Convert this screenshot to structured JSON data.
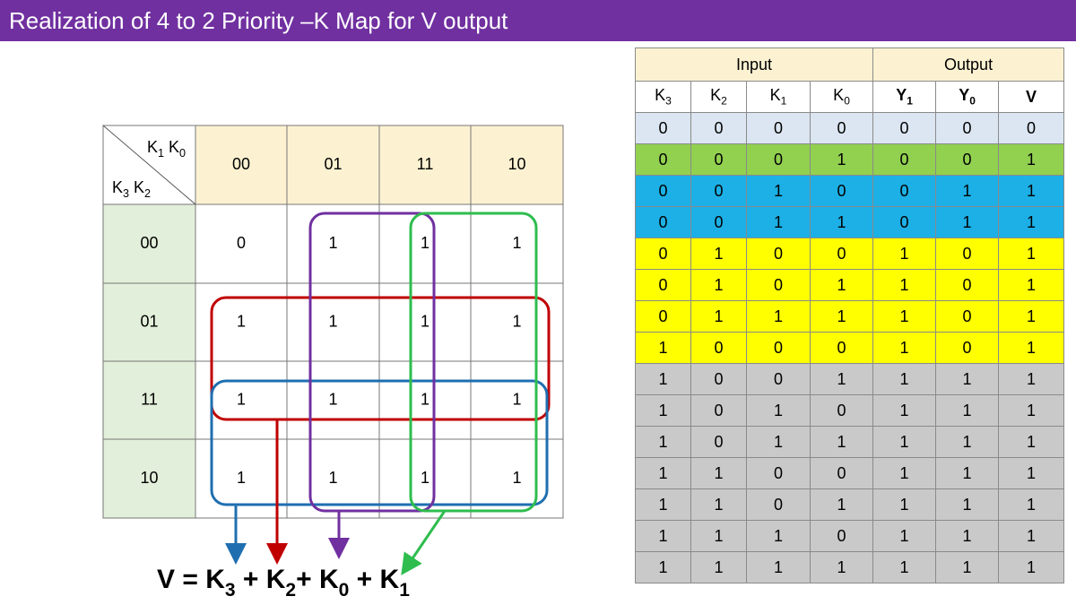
{
  "title": "Realization of 4 to 2 Priority –K Map for V output",
  "kmap": {
    "corner_top": [
      {
        "text": "K",
        "sub": "1"
      },
      {
        "text": " K",
        "sub": "0"
      }
    ],
    "corner_bottom": [
      {
        "text": "K",
        "sub": "3"
      },
      {
        "text": " K",
        "sub": "2"
      }
    ],
    "columns": [
      "00",
      "01",
      "11",
      "10"
    ],
    "rows": [
      {
        "label": "00",
        "cells": [
          0,
          1,
          1,
          1
        ]
      },
      {
        "label": "01",
        "cells": [
          1,
          1,
          1,
          1
        ]
      },
      {
        "label": "11",
        "cells": [
          1,
          1,
          1,
          1
        ]
      },
      {
        "label": "10",
        "cells": [
          1,
          1,
          1,
          1
        ]
      }
    ]
  },
  "equation": [
    {
      "text": "V = K",
      "sub": "3"
    },
    {
      "text": " + K",
      "sub": "2"
    },
    {
      "text": "+ K",
      "sub": "0"
    },
    {
      "text": " + K",
      "sub": "1"
    }
  ],
  "truth_table": {
    "groups": [
      {
        "label": "Input",
        "span": 4
      },
      {
        "label": "Output",
        "span": 3
      }
    ],
    "columns": [
      {
        "text": "K",
        "sub": "3"
      },
      {
        "text": "K",
        "sub": "2"
      },
      {
        "text": "K",
        "sub": "1"
      },
      {
        "text": "K",
        "sub": "0"
      },
      {
        "text": "Y",
        "sub": "1",
        "bold": true
      },
      {
        "text": "Y",
        "sub": "0",
        "bold": true
      },
      {
        "text": "V",
        "bold": true
      }
    ],
    "rows": [
      {
        "color": "#dce6f2",
        "values": [
          0,
          0,
          0,
          0,
          0,
          0,
          0
        ]
      },
      {
        "color": "#92d050",
        "values": [
          0,
          0,
          0,
          1,
          0,
          0,
          1
        ]
      },
      {
        "color": "#1cb0e6",
        "values": [
          0,
          0,
          1,
          0,
          0,
          1,
          1
        ]
      },
      {
        "color": "#1cb0e6",
        "values": [
          0,
          0,
          1,
          1,
          0,
          1,
          1
        ]
      },
      {
        "color": "#ffff00",
        "values": [
          0,
          1,
          0,
          0,
          1,
          0,
          1
        ]
      },
      {
        "color": "#ffff00",
        "values": [
          0,
          1,
          0,
          1,
          1,
          0,
          1
        ]
      },
      {
        "color": "#ffff00",
        "values": [
          0,
          1,
          1,
          1,
          1,
          0,
          1
        ]
      },
      {
        "color": "#ffff00",
        "values": [
          1,
          0,
          0,
          0,
          1,
          0,
          1
        ]
      },
      {
        "color": "#c9c9c9",
        "values": [
          1,
          0,
          0,
          1,
          1,
          1,
          1
        ]
      },
      {
        "color": "#c9c9c9",
        "values": [
          1,
          0,
          1,
          0,
          1,
          1,
          1
        ]
      },
      {
        "color": "#c9c9c9",
        "values": [
          1,
          0,
          1,
          1,
          1,
          1,
          1
        ]
      },
      {
        "color": "#c9c9c9",
        "values": [
          1,
          1,
          0,
          0,
          1,
          1,
          1
        ]
      },
      {
        "color": "#c9c9c9",
        "values": [
          1,
          1,
          0,
          1,
          1,
          1,
          1
        ]
      },
      {
        "color": "#c9c9c9",
        "values": [
          1,
          1,
          1,
          0,
          1,
          1,
          1
        ]
      },
      {
        "color": "#c9c9c9",
        "values": [
          1,
          1,
          1,
          1,
          1,
          1,
          1
        ]
      }
    ]
  }
}
